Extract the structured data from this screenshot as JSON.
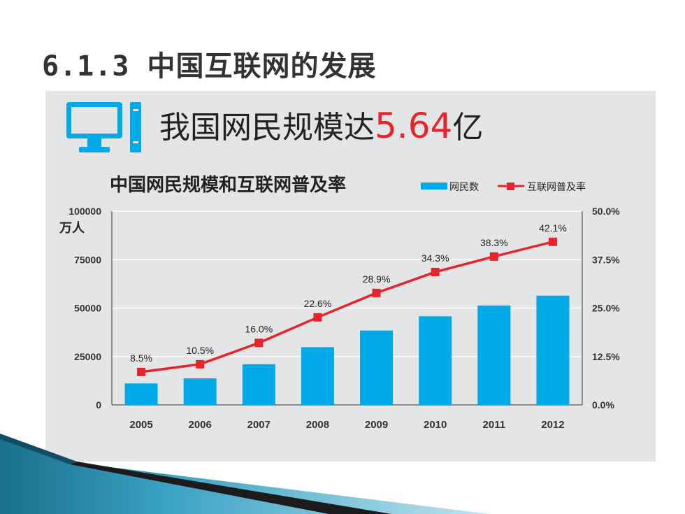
{
  "slide": {
    "title_num": "6.1.3",
    "title_text": "中国互联网的发展"
  },
  "headline": {
    "prefix": "我国网民规模达",
    "number": "5.64",
    "suffix": "亿"
  },
  "icons": {
    "computer": "computer-monitor-icon",
    "accent_deco": "blue-wedge-decoration"
  },
  "colors": {
    "bar": "#00a9e8",
    "line": "#e8232a",
    "headline_number": "#e8232a",
    "panel_bg": "#e4e5e6"
  },
  "chart_data": {
    "type": "bar",
    "title": "中国网民规模和互联网普及率",
    "categories": [
      "2005",
      "2006",
      "2007",
      "2008",
      "2009",
      "2010",
      "2011",
      "2012"
    ],
    "series": [
      {
        "name": "网民数",
        "type": "bar",
        "axis": "left",
        "values": [
          11100,
          13700,
          21000,
          29800,
          38400,
          45730,
          51310,
          56400
        ]
      },
      {
        "name": "互联网普及率",
        "type": "line",
        "axis": "right",
        "values": [
          8.5,
          10.5,
          16.0,
          22.6,
          28.9,
          34.3,
          38.3,
          42.1
        ],
        "labels": [
          "8.5%",
          "10.5%",
          "16.0%",
          "22.6%",
          "28.9%",
          "34.3%",
          "38.3%",
          "42.1%"
        ]
      }
    ],
    "ylabel": "万人",
    "ylim": [
      0,
      100000
    ],
    "yticks": [
      "100000",
      "75000",
      "50000",
      "25000",
      "0"
    ],
    "y2lim": [
      0,
      50
    ],
    "y2ticks": [
      "50.0%",
      "37.5%",
      "25.0%",
      "12.5%",
      "0.0%"
    ],
    "legend": "top-right",
    "grid": true
  }
}
